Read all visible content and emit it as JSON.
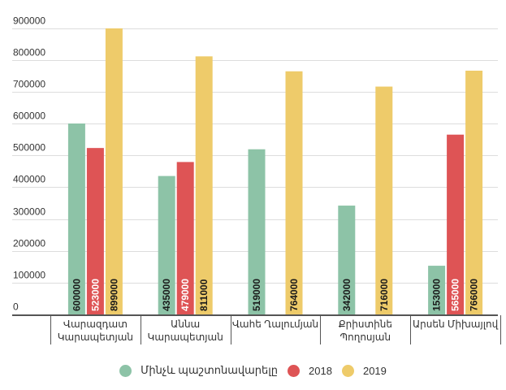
{
  "chart_data": {
    "type": "bar",
    "title": "",
    "xlabel": "",
    "ylabel": "",
    "ylim": [
      0,
      900000
    ],
    "yticks": [
      0,
      100000,
      200000,
      300000,
      400000,
      500000,
      600000,
      700000,
      800000,
      900000
    ],
    "ytick_labels": [
      "0",
      "100000",
      "200000",
      "300000",
      "400000",
      "500000",
      "600000",
      "700000",
      "800000",
      "900000"
    ],
    "grid": true,
    "legend_position": "bottom",
    "categories": [
      [
        "Վարազդատ",
        "Կարապետյան"
      ],
      [
        "Աննա",
        "Կարապետյան"
      ],
      [
        "Վահե Ղալումյան"
      ],
      [
        "Քրիստինե",
        "Պողոսյան"
      ],
      [
        "Արսեն Միխայլով"
      ]
    ],
    "series": [
      {
        "name": "Մինչև պաշտոնավարելը",
        "color": "#8dc3a7",
        "label_color": "#1a1a1a",
        "values": [
          600000,
          435000,
          519000,
          342000,
          153000
        ]
      },
      {
        "name": "2018",
        "color": "#de5455",
        "label_color": "#ffffff",
        "values": [
          523000,
          479000,
          null,
          null,
          565000
        ]
      },
      {
        "name": "2019",
        "color": "#eecb6a",
        "label_color": "#1a1a1a",
        "values": [
          899000,
          811000,
          764000,
          716000,
          766000
        ]
      }
    ]
  }
}
